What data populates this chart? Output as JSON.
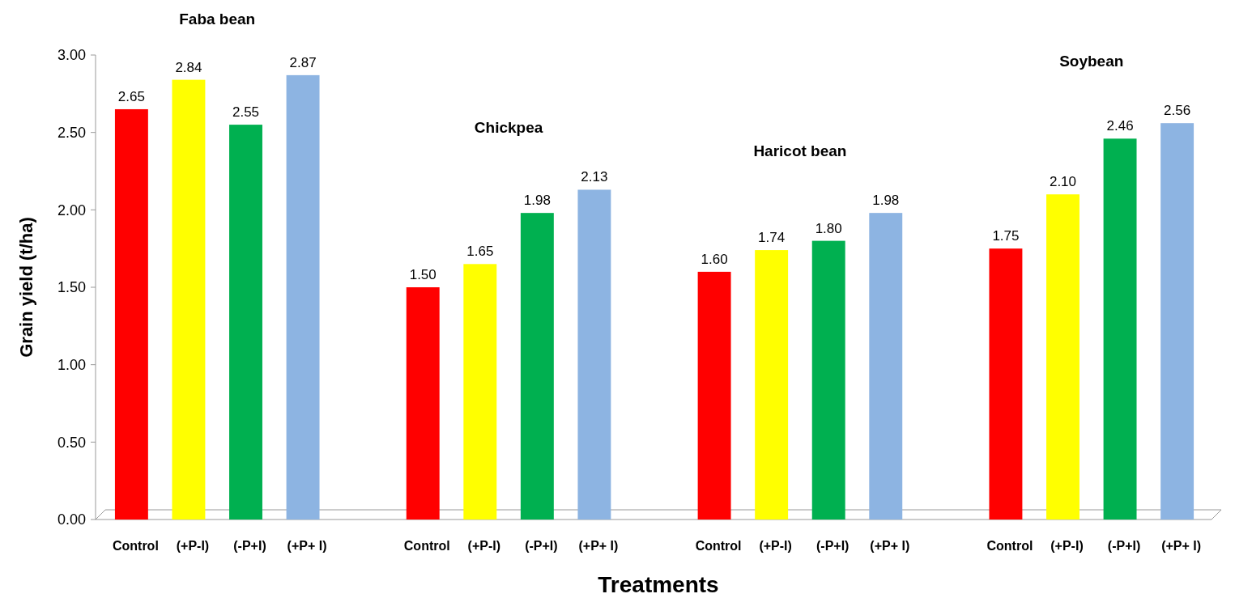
{
  "chart_data": {
    "type": "bar",
    "xlabel": "Treatments",
    "ylabel": "Grain yield (t/ha)",
    "categories": [
      "Control",
      "(+P-I)",
      "(-P+I)",
      "(+P+ I)",
      "Control",
      "(+P-I)",
      "(-P+I)",
      "(+P+ I)",
      "Control",
      "(+P-I)",
      "(-P+I)",
      "(+P+ I)",
      "Control",
      "(+P-I)",
      "(-P+I)",
      "(+P+ I)"
    ],
    "values": [
      2.65,
      2.84,
      2.55,
      2.87,
      1.5,
      1.65,
      1.98,
      2.13,
      1.6,
      1.74,
      1.8,
      1.98,
      1.75,
      2.1,
      2.46,
      2.56
    ],
    "colors": [
      "#ff0000",
      "#ffff00",
      "#00b050",
      "#8db4e2",
      "#ff0000",
      "#ffff00",
      "#00b050",
      "#8db4e2",
      "#ff0000",
      "#ffff00",
      "#00b050",
      "#8db4e2",
      "#ff0000",
      "#ffff00",
      "#00b050",
      "#8db4e2"
    ],
    "value_labels": [
      "2.65",
      "2.84",
      "2.55",
      "2.87",
      "1.50",
      "1.65",
      "1.98",
      "2.13",
      "1.60",
      "1.74",
      "1.80",
      "1.98",
      "1.75",
      "2.10",
      "2.46",
      "2.56"
    ],
    "ylim": [
      0,
      3
    ],
    "yticks": [
      {
        "value": 0,
        "label": "0.00"
      },
      {
        "value": 0.5,
        "label": "0.50"
      },
      {
        "value": 1,
        "label": "1.00"
      },
      {
        "value": 1.5,
        "label": "1.50"
      },
      {
        "value": 2,
        "label": "2.00"
      },
      {
        "value": 2.5,
        "label": "2.50"
      },
      {
        "value": 3,
        "label": "3.00"
      }
    ],
    "grid": false,
    "annotations": [
      "Faba bean",
      "Chickpea",
      "Haricot bean",
      "Soybean"
    ]
  }
}
